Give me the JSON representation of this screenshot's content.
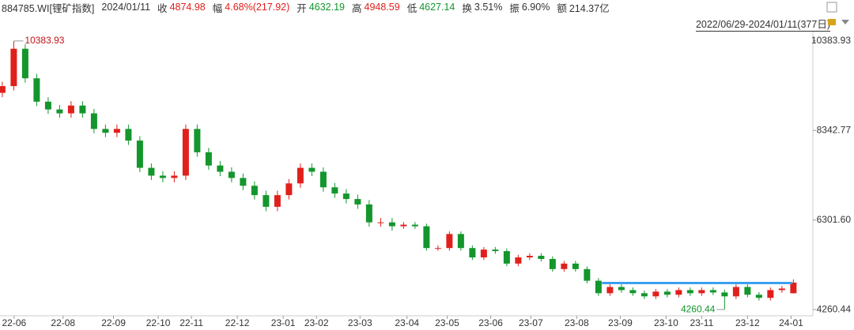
{
  "header": {
    "code": "884785.WI[锂矿指数]",
    "date": "2024/01/11",
    "fields": [
      {
        "label": "收",
        "value": "4874.98",
        "color": "#e0201c"
      },
      {
        "label": "幅",
        "value": "4.68%(217.92)",
        "color": "#e0201c"
      },
      {
        "label": "开",
        "value": "4632.19",
        "color": "#13962c"
      },
      {
        "label": "高",
        "value": "4948.59",
        "color": "#e0201c"
      },
      {
        "label": "低",
        "value": "4627.14",
        "color": "#13962c"
      },
      {
        "label": "换",
        "value": "3.51%",
        "color": "#333333"
      },
      {
        "label": "振",
        "value": "6.90%",
        "color": "#333333"
      },
      {
        "label": "额",
        "value": "214.37亿",
        "color": "#333333"
      }
    ],
    "range": "2022/06/29-2024/01/11(377日)"
  },
  "chart_data": {
    "type": "candlestick",
    "up_color": "#e0201c",
    "down_color": "#13962c",
    "open": [
      9200,
      9354,
      10206,
      9532,
      8999,
      8822,
      8733,
      8911,
      8733,
      8378,
      8290,
      8378,
      8112,
      7491,
      7313,
      7260,
      7313,
      8378,
      7846,
      7544,
      7402,
      7260,
      7082,
      6869,
      6603,
      6869,
      7136,
      7491,
      7402,
      7047,
      6905,
      6780,
      6656,
      6248,
      6248,
      6159,
      6195,
      6159,
      5662,
      5662,
      5982,
      5662,
      5449,
      5627,
      5592,
      5308,
      5449,
      5485,
      5414,
      5183,
      5308,
      5183,
      4917,
      4633,
      4775,
      4704,
      4633,
      4562,
      4669,
      4598,
      4704,
      4633,
      4704,
      4650,
      4562,
      4775,
      4598,
      4527,
      4704,
      4632.19
    ],
    "high": [
      9454,
      10383.93,
      10306,
      9632,
      9099,
      8922,
      9011,
      9011,
      8833,
      8478,
      8478,
      8478,
      8212,
      7591,
      7413,
      7413,
      8478,
      8478,
      7946,
      7644,
      7502,
      7360,
      7182,
      6969,
      6969,
      7236,
      7591,
      7591,
      7502,
      7147,
      7005,
      6880,
      6756,
      6348,
      6348,
      6255,
      6255,
      6219,
      5722,
      6042,
      6042,
      5722,
      5687,
      5687,
      5652,
      5509,
      5545,
      5545,
      5474,
      5368,
      5368,
      5243,
      4977,
      4835,
      4835,
      4764,
      4693,
      4729,
      4729,
      4764,
      4764,
      4764,
      4764,
      4710,
      4835,
      4835,
      4658,
      4764,
      4800,
      4948.59
    ],
    "low": [
      9100,
      9254,
      9432,
      8899,
      8722,
      8633,
      8633,
      8633,
      8278,
      8190,
      8190,
      8012,
      7391,
      7213,
      7160,
      7160,
      7213,
      7746,
      7444,
      7302,
      7160,
      6982,
      6769,
      6503,
      6503,
      6769,
      7036,
      7302,
      6947,
      6805,
      6680,
      6556,
      6148,
      6148,
      6059,
      6099,
      6099,
      5602,
      5602,
      5602,
      5602,
      5389,
      5389,
      5532,
      5248,
      5248,
      5389,
      5354,
      5123,
      5123,
      5123,
      4857,
      4573,
      4573,
      4644,
      4573,
      4502,
      4502,
      4538,
      4538,
      4573,
      4573,
      4590,
      4260.44,
      4502,
      4538,
      4467,
      4467,
      4644,
      4627.14
    ],
    "close": [
      9354,
      10206,
      9532,
      8999,
      8822,
      8733,
      8911,
      8733,
      8378,
      8290,
      8378,
      8112,
      7491,
      7313,
      7260,
      7313,
      8378,
      7846,
      7544,
      7402,
      7260,
      7082,
      6869,
      6603,
      6869,
      7136,
      7491,
      7402,
      7047,
      6905,
      6780,
      6656,
      6248,
      6248,
      6159,
      6195,
      6159,
      5662,
      5662,
      5982,
      5662,
      5449,
      5627,
      5592,
      5308,
      5449,
      5485,
      5414,
      5183,
      5308,
      5183,
      4917,
      4633,
      4775,
      4704,
      4633,
      4562,
      4669,
      4598,
      4704,
      4633,
      4704,
      4650,
      4562,
      4775,
      4598,
      4527,
      4704,
      4740,
      4874.98
    ],
    "xlim": [
      -0.2,
      70.7
    ],
    "ylim": [
      4118,
      10597
    ],
    "yticks": [
      4260.44,
      {
        "value": 6301.6,
        "label": "6301.60"
      },
      8342.77,
      10383.93
    ],
    "xticks": [
      {
        "value": 1.03,
        "label": "22-06"
      },
      {
        "value": 5.3,
        "label": "22-08"
      },
      {
        "value": 9.7,
        "label": "22-09"
      },
      {
        "value": 13.6,
        "label": "22-10"
      },
      {
        "value": 16.5,
        "label": "22-11"
      },
      {
        "value": 20.5,
        "label": "22-12"
      },
      {
        "value": 24.5,
        "label": "23-01"
      },
      {
        "value": 27.4,
        "label": "23-02"
      },
      {
        "value": 31.2,
        "label": "23-03"
      },
      {
        "value": 35.3,
        "label": "23-04"
      },
      {
        "value": 38.8,
        "label": "23-05"
      },
      {
        "value": 42.6,
        "label": "23-06"
      },
      {
        "value": 46.1,
        "label": "23-07"
      },
      {
        "value": 50.1,
        "label": "23-08"
      },
      {
        "value": 53.9,
        "label": "23-09"
      },
      {
        "value": 57.9,
        "label": "23-10"
      },
      {
        "value": 61.0,
        "label": "23-11"
      },
      {
        "value": 65.0,
        "label": "23-12"
      },
      {
        "value": 68.8,
        "label": "24-01"
      }
    ],
    "max_label": {
      "value": 10383.93,
      "index": 1,
      "color": "#c0141c"
    },
    "min_label": {
      "value": 4260.44,
      "index": 63,
      "color": "#13962c"
    },
    "support_line": {
      "value": 4865,
      "from": 52.3,
      "to": 68.9,
      "color": "#3aa0f0"
    }
  }
}
